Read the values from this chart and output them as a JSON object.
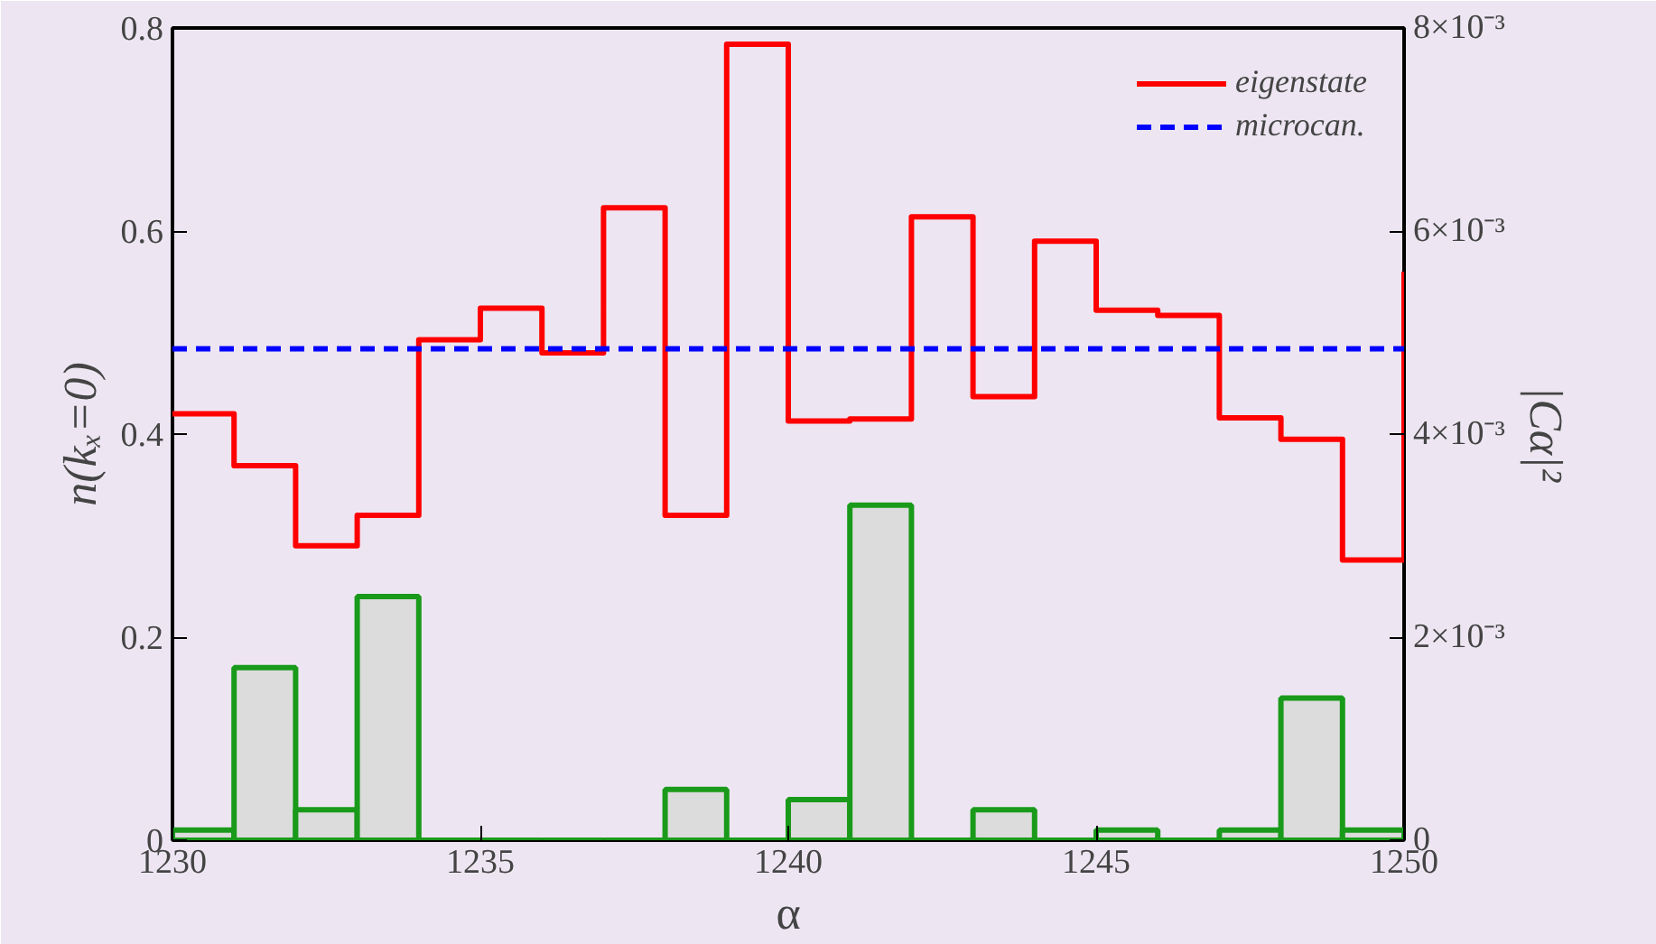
{
  "chart_data": {
    "type": "step",
    "xlabel": "α",
    "ylabel": "n(kₓ=0)",
    "y2label": "|Cα|²",
    "xlim": [
      1230,
      1250
    ],
    "xticks": [
      1230,
      1235,
      1240,
      1245,
      1250
    ],
    "ylim": [
      0,
      0.8
    ],
    "yticks": [
      0,
      {
        "value": 0.2,
        "label": "0.2"
      },
      {
        "value": 0.4,
        "label": "0.4"
      },
      {
        "value": 0.6,
        "label": "0.6"
      },
      {
        "value": 0.8,
        "label": "0.8"
      }
    ],
    "y2lim": [
      0,
      0.008
    ],
    "y2ticks": [
      {
        "value": 0,
        "label": "0"
      },
      {
        "value": 0.002,
        "label": "2×10⁻³"
      },
      {
        "value": 0.004,
        "label": "4×10⁻³"
      },
      {
        "value": 0.006,
        "label": "6×10⁻³"
      },
      {
        "value": 0.008,
        "label": "8×10⁻³"
      }
    ],
    "grid": false,
    "legend": "top right",
    "series": [
      {
        "type": "bar",
        "axis": "y2",
        "color": "#1a9a1a",
        "x": [
          1230.5,
          1231.5,
          1232.5,
          1233.5,
          1234.5,
          1235.5,
          1236.5,
          1237.5,
          1238.5,
          1239.5,
          1240.5,
          1241.5,
          1242.5,
          1243.5,
          1244.5,
          1245.5,
          1246.5,
          1247.5,
          1248.5,
          1249.5
        ],
        "values": [
          0.0001,
          0.0017,
          0.0003,
          0.0024,
          0,
          0,
          0,
          0,
          0.0005,
          0,
          0.0004,
          0.0033,
          0,
          0.0003,
          0,
          0.0001,
          0,
          0.0001,
          0.0014,
          0.0001
        ]
      },
      {
        "name": "eigenstate",
        "color": "#ff0000",
        "line_style": "solid",
        "x": [
          1230,
          1231,
          1232,
          1233,
          1234,
          1235,
          1236,
          1237,
          1238,
          1239,
          1240,
          1241,
          1242,
          1243,
          1244,
          1245,
          1246,
          1247,
          1248,
          1249,
          1250
        ],
        "values": [
          0.42,
          0.369,
          0.29,
          0.32,
          0.493,
          0.524,
          0.48,
          0.623,
          0.32,
          0.784,
          0.413,
          0.415,
          0.614,
          0.437,
          0.59,
          0.522,
          0.517,
          0.416,
          0.395,
          0.276,
          0.56
        ]
      },
      {
        "type": "line",
        "name": "microcan.",
        "color": "#0000ff",
        "line_style": "dashed",
        "x": [
          1230,
          1250
        ],
        "values": [
          0.484,
          0.484
        ]
      }
    ]
  }
}
